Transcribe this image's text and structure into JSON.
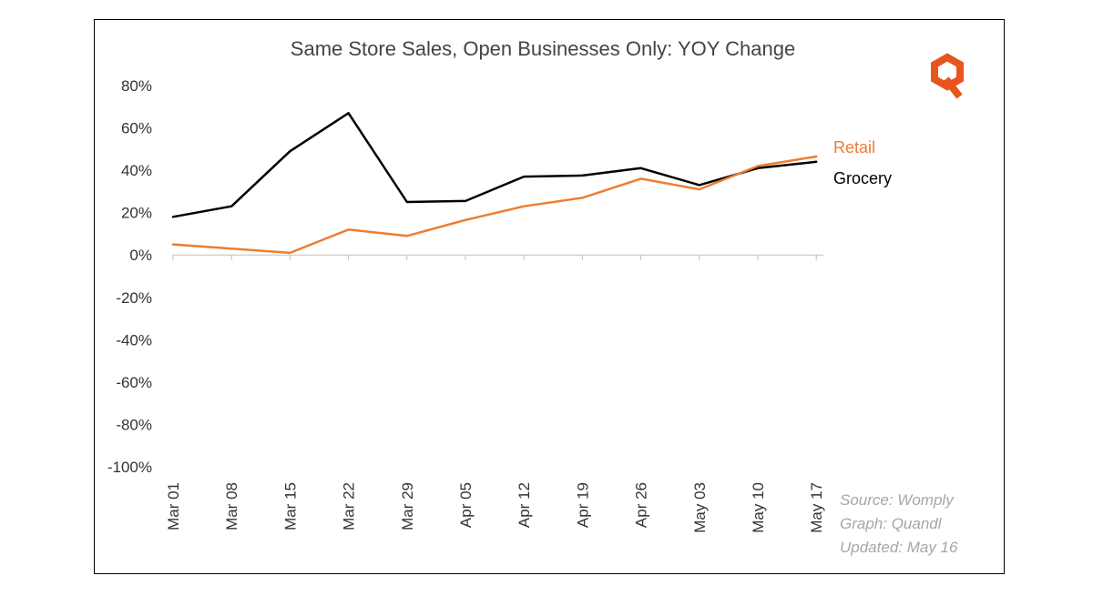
{
  "chart_data": {
    "type": "line",
    "title": "Same Store Sales, Open Businesses Only: YOY Change",
    "categories": [
      "Mar 01",
      "Mar 08",
      "Mar 15",
      "Mar 22",
      "Mar 29",
      "Apr 05",
      "Apr 12",
      "Apr 19",
      "Apr 26",
      "May 03",
      "May 10",
      "May 17"
    ],
    "y_ticks": [
      "80%",
      "60%",
      "40%",
      "20%",
      "0%",
      "-20%",
      "-40%",
      "-60%",
      "-80%",
      "-100%"
    ],
    "ylim": [
      -100,
      80
    ],
    "y_unit": "%",
    "xlabel": "",
    "ylabel": "",
    "grid": false,
    "series": [
      {
        "name": "Grocery",
        "color": "#000000",
        "values": [
          18,
          23,
          49,
          67,
          25,
          25.5,
          37,
          37.5,
          41,
          33,
          41,
          44
        ]
      },
      {
        "name": "Retail",
        "color": "#ED7D31",
        "values": [
          5,
          3,
          1,
          12,
          9,
          16.5,
          23,
          27,
          36,
          31,
          42,
          46.5
        ]
      }
    ],
    "legend": {
      "placement": "right",
      "labels": [
        {
          "text": "Retail",
          "color": "#ED7D31"
        },
        {
          "text": "Grocery",
          "color": "#000000"
        }
      ]
    },
    "annotations": {
      "source": "Source: Womply",
      "graph": "Graph: Quandl",
      "updated": "Updated: May 16"
    }
  },
  "logo": {
    "name": "quandl-logo",
    "color": "#E8541E"
  }
}
